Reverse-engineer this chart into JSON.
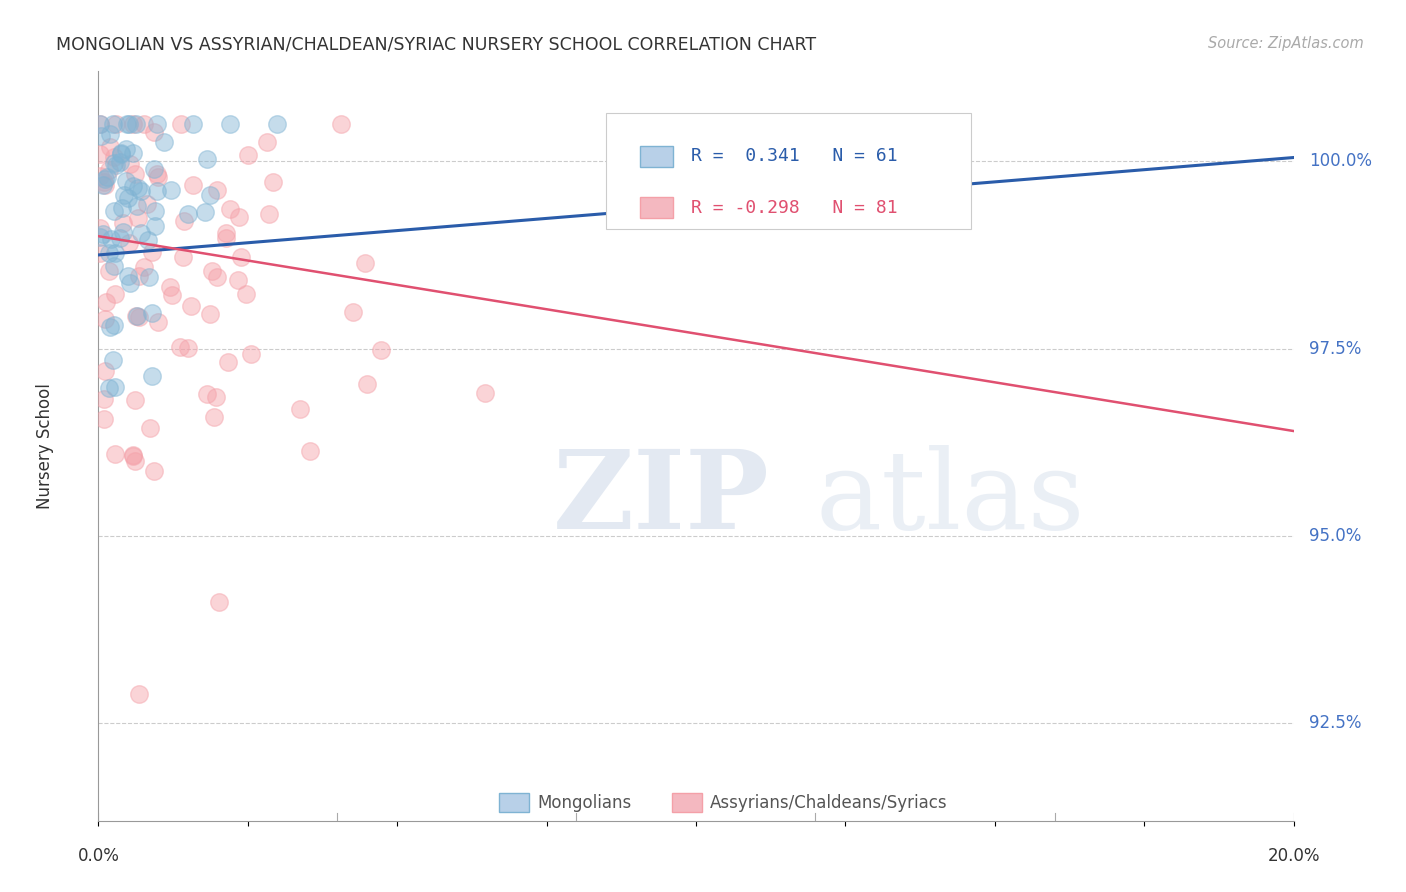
{
  "title": "MONGOLIAN VS ASSYRIAN/CHALDEAN/SYRIAC NURSERY SCHOOL CORRELATION CHART",
  "source": "Source: ZipAtlas.com",
  "ylabel": "Nursery School",
  "ytick_labels": [
    "92.5%",
    "95.0%",
    "97.5%",
    "100.0%"
  ],
  "ytick_values": [
    92.5,
    95.0,
    97.5,
    100.0
  ],
  "xlim": [
    0.0,
    20.0
  ],
  "ylim": [
    91.2,
    101.2
  ],
  "legend_mongolians": "Mongolians",
  "legend_assyrians": "Assyrians/Chaldeans/Syriacs",
  "mongolian_color": "#7fb3d3",
  "assyrian_color": "#f4a0a8",
  "trend_mongolian_color": "#2a5caa",
  "trend_assyrian_color": "#e05070",
  "background_color": "#ffffff",
  "grid_color": "#cccccc",
  "mongolian_R": 0.341,
  "mongolian_N": 61,
  "assyrian_R": -0.298,
  "assyrian_N": 81,
  "mon_trend_x0": 0.0,
  "mon_trend_y0": 98.75,
  "mon_trend_x1": 20.0,
  "mon_trend_y1": 100.05,
  "ass_trend_x0": 0.0,
  "ass_trend_y0": 99.0,
  "ass_trend_x1": 20.0,
  "ass_trend_y1": 96.4
}
